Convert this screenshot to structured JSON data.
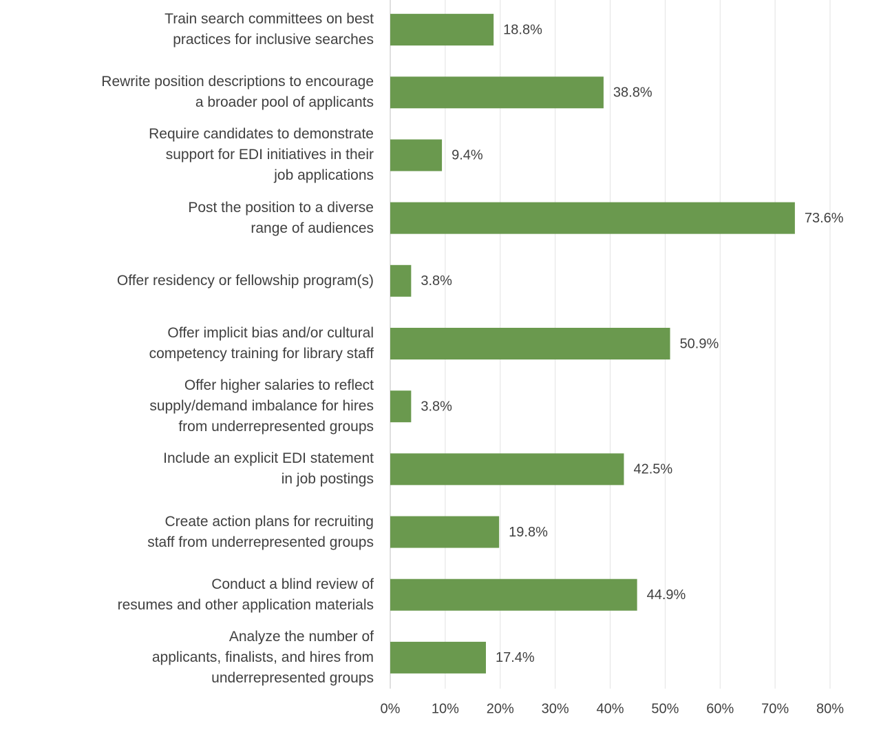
{
  "chart_data": {
    "type": "bar",
    "orientation": "horizontal",
    "color": "#6a994e",
    "grid": true,
    "categories": [
      "Train search committees on best\npractices for inclusive searches",
      "Rewrite position descriptions to encourage\na broader pool of applicants",
      "Require candidates to demonstrate\nsupport for EDI initiatives in their\njob applications",
      "Post the position to a diverse\nrange of audiences",
      "Offer residency or fellowship program(s)",
      "Offer implicit bias and/or cultural\ncompetency training for library staff",
      "Offer higher salaries to reflect\nsupply/demand imbalance for hires\nfrom underrepresented groups",
      "Include an explicit EDI statement\nin job postings",
      "Create action plans for recruiting\nstaff from underrepresented groups",
      "Conduct a blind review of\nresumes and other application materials",
      "Analyze the number of\napplicants, finalists, and hires from\nunderrepresented groups"
    ],
    "values": [
      18.8,
      38.8,
      9.4,
      73.6,
      3.8,
      50.9,
      3.8,
      42.5,
      19.8,
      44.9,
      17.4
    ],
    "value_labels": [
      "18.8%",
      "38.8%",
      "9.4%",
      "73.6%",
      "3.8%",
      "50.9%",
      "3.8%",
      "42.5%",
      "19.8%",
      "44.9%",
      "17.4%"
    ],
    "xlim": [
      0,
      80
    ],
    "xticks": [
      {
        "value": 0,
        "label": "0%"
      },
      {
        "value": 10,
        "label": "10%"
      },
      {
        "value": 20,
        "label": "20%"
      },
      {
        "value": 30,
        "label": "30%"
      },
      {
        "value": 40,
        "label": "40%"
      },
      {
        "value": 50,
        "label": "50%"
      },
      {
        "value": 60,
        "label": "60%"
      },
      {
        "value": 70,
        "label": "70%"
      },
      {
        "value": 80,
        "label": "80%"
      }
    ]
  }
}
